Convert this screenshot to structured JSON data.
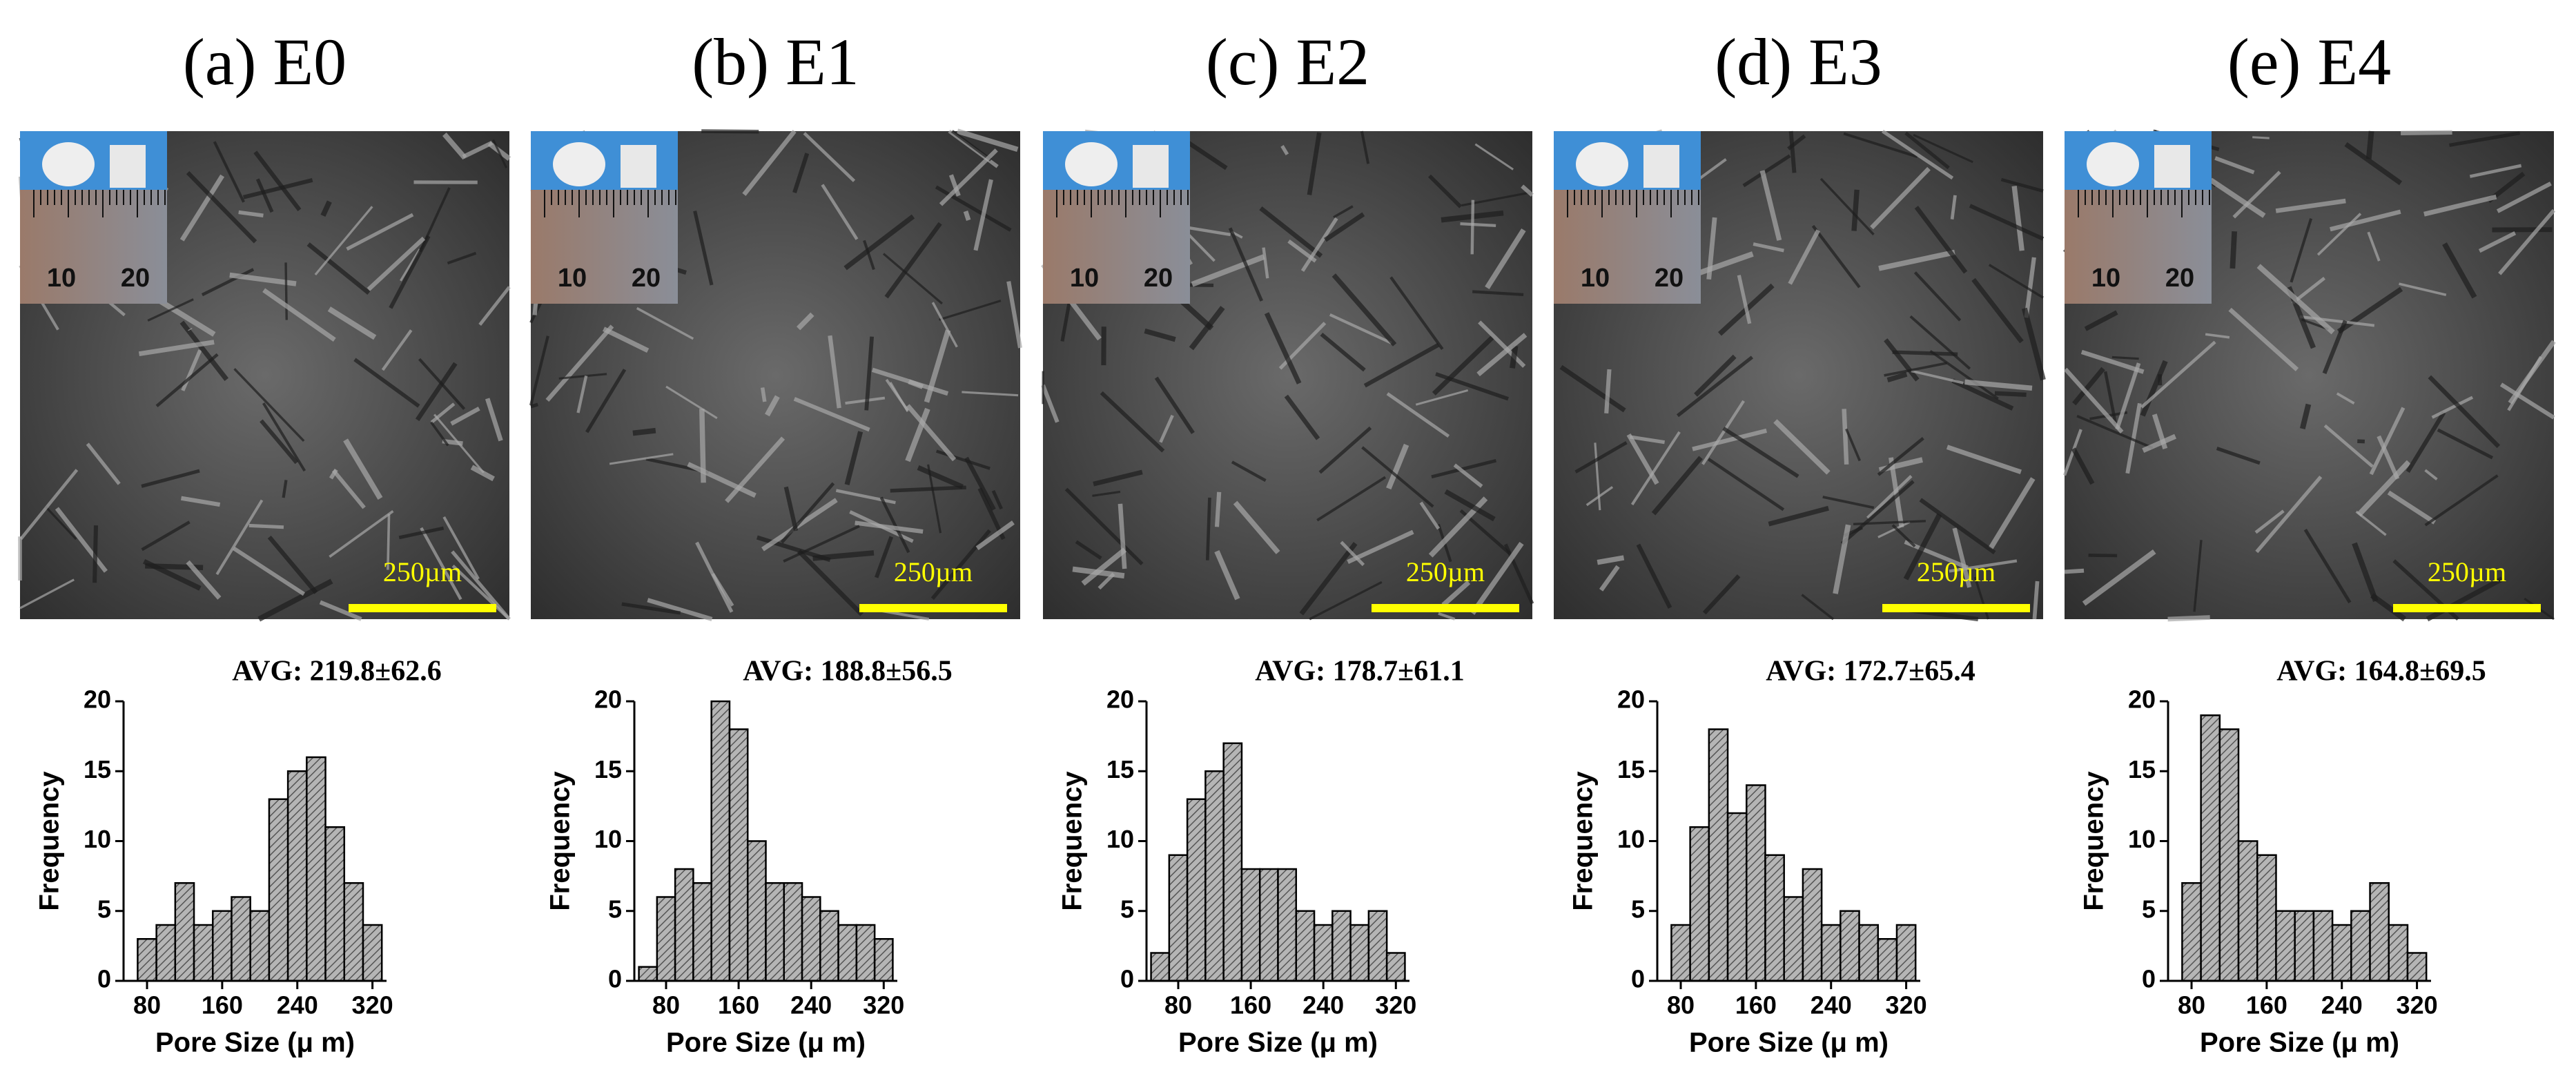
{
  "panels": [
    {
      "label": "(a) E0",
      "scale_bar": "250µm",
      "ruler_labels": [
        "10",
        "20"
      ]
    },
    {
      "label": "(b) E1",
      "scale_bar": "250µm",
      "ruler_labels": [
        "10",
        "20"
      ]
    },
    {
      "label": "(c) E2",
      "scale_bar": "250µm",
      "ruler_labels": [
        "10",
        "20"
      ]
    },
    {
      "label": "(d) E3",
      "scale_bar": "250µm",
      "ruler_labels": [
        "10",
        "20"
      ]
    },
    {
      "label": "(e) E4",
      "scale_bar": "250µm",
      "ruler_labels": [
        "10",
        "20"
      ]
    }
  ],
  "chart_data": [
    {
      "type": "histogram",
      "annotation": "AVG: 219.8±62.6",
      "xlabel": "Pore Size (μ m)",
      "ylabel": "Frequency",
      "bins": [
        70,
        90,
        110,
        130,
        150,
        170,
        190,
        210,
        230,
        250,
        270,
        290,
        310,
        330
      ],
      "values": [
        3,
        4,
        7,
        4,
        5,
        6,
        5,
        13,
        15,
        16,
        11,
        7,
        4
      ],
      "xlim": [
        55,
        335
      ],
      "xticks": [
        80,
        160,
        240,
        320
      ],
      "ylim": [
        0,
        20
      ],
      "yticks": [
        0,
        5,
        10,
        15,
        20
      ],
      "color": "#9a9a9a"
    },
    {
      "type": "histogram",
      "annotation": "AVG: 188.8±56.5",
      "xlabel": "Pore Size (μ m)",
      "ylabel": "Frequency",
      "bins": [
        50,
        70,
        90,
        110,
        130,
        150,
        170,
        190,
        210,
        230,
        250,
        270,
        290,
        310,
        330
      ],
      "values": [
        1,
        6,
        8,
        7,
        20,
        18,
        10,
        7,
        7,
        6,
        5,
        4,
        4,
        3
      ],
      "xlim": [
        45,
        335
      ],
      "xticks": [
        80,
        160,
        240,
        320
      ],
      "ylim": [
        0,
        20
      ],
      "yticks": [
        0,
        5,
        10,
        15,
        20
      ],
      "color": "#9a9a9a"
    },
    {
      "type": "histogram",
      "annotation": "AVG: 178.7±61.1",
      "xlabel": "Pore Size (μ m)",
      "ylabel": "Frequency",
      "bins": [
        50,
        70,
        90,
        110,
        130,
        150,
        170,
        190,
        210,
        230,
        250,
        270,
        290,
        310,
        330
      ],
      "values": [
        2,
        9,
        13,
        15,
        17,
        8,
        8,
        8,
        5,
        4,
        5,
        4,
        5,
        2
      ],
      "xlim": [
        45,
        335
      ],
      "xticks": [
        80,
        160,
        240,
        320
      ],
      "ylim": [
        0,
        20
      ],
      "yticks": [
        0,
        5,
        10,
        15,
        20
      ],
      "color": "#9a9a9a"
    },
    {
      "type": "histogram",
      "annotation": "AVG: 172.7±65.4",
      "xlabel": "Pore Size (μ m)",
      "ylabel": "Frequency",
      "bins": [
        70,
        90,
        110,
        130,
        150,
        170,
        190,
        210,
        230,
        250,
        270,
        290,
        310,
        330
      ],
      "values": [
        4,
        11,
        18,
        12,
        14,
        9,
        6,
        8,
        4,
        5,
        4,
        3,
        4
      ],
      "xlim": [
        55,
        335
      ],
      "xticks": [
        80,
        160,
        240,
        320
      ],
      "ylim": [
        0,
        20
      ],
      "yticks": [
        0,
        5,
        10,
        15,
        20
      ],
      "color": "#9a9a9a"
    },
    {
      "type": "histogram",
      "annotation": "AVG: 164.8±69.5",
      "xlabel": "Pore Size (μ m)",
      "ylabel": "Frequency",
      "bins": [
        70,
        90,
        110,
        130,
        150,
        170,
        190,
        210,
        230,
        250,
        270,
        290,
        310,
        330
      ],
      "values": [
        7,
        19,
        18,
        10,
        9,
        5,
        5,
        5,
        4,
        5,
        7,
        4,
        2
      ],
      "xlim": [
        55,
        335
      ],
      "xticks": [
        80,
        160,
        240,
        320
      ],
      "ylim": [
        0,
        20
      ],
      "yticks": [
        0,
        5,
        10,
        15,
        20
      ],
      "color": "#9a9a9a"
    }
  ]
}
